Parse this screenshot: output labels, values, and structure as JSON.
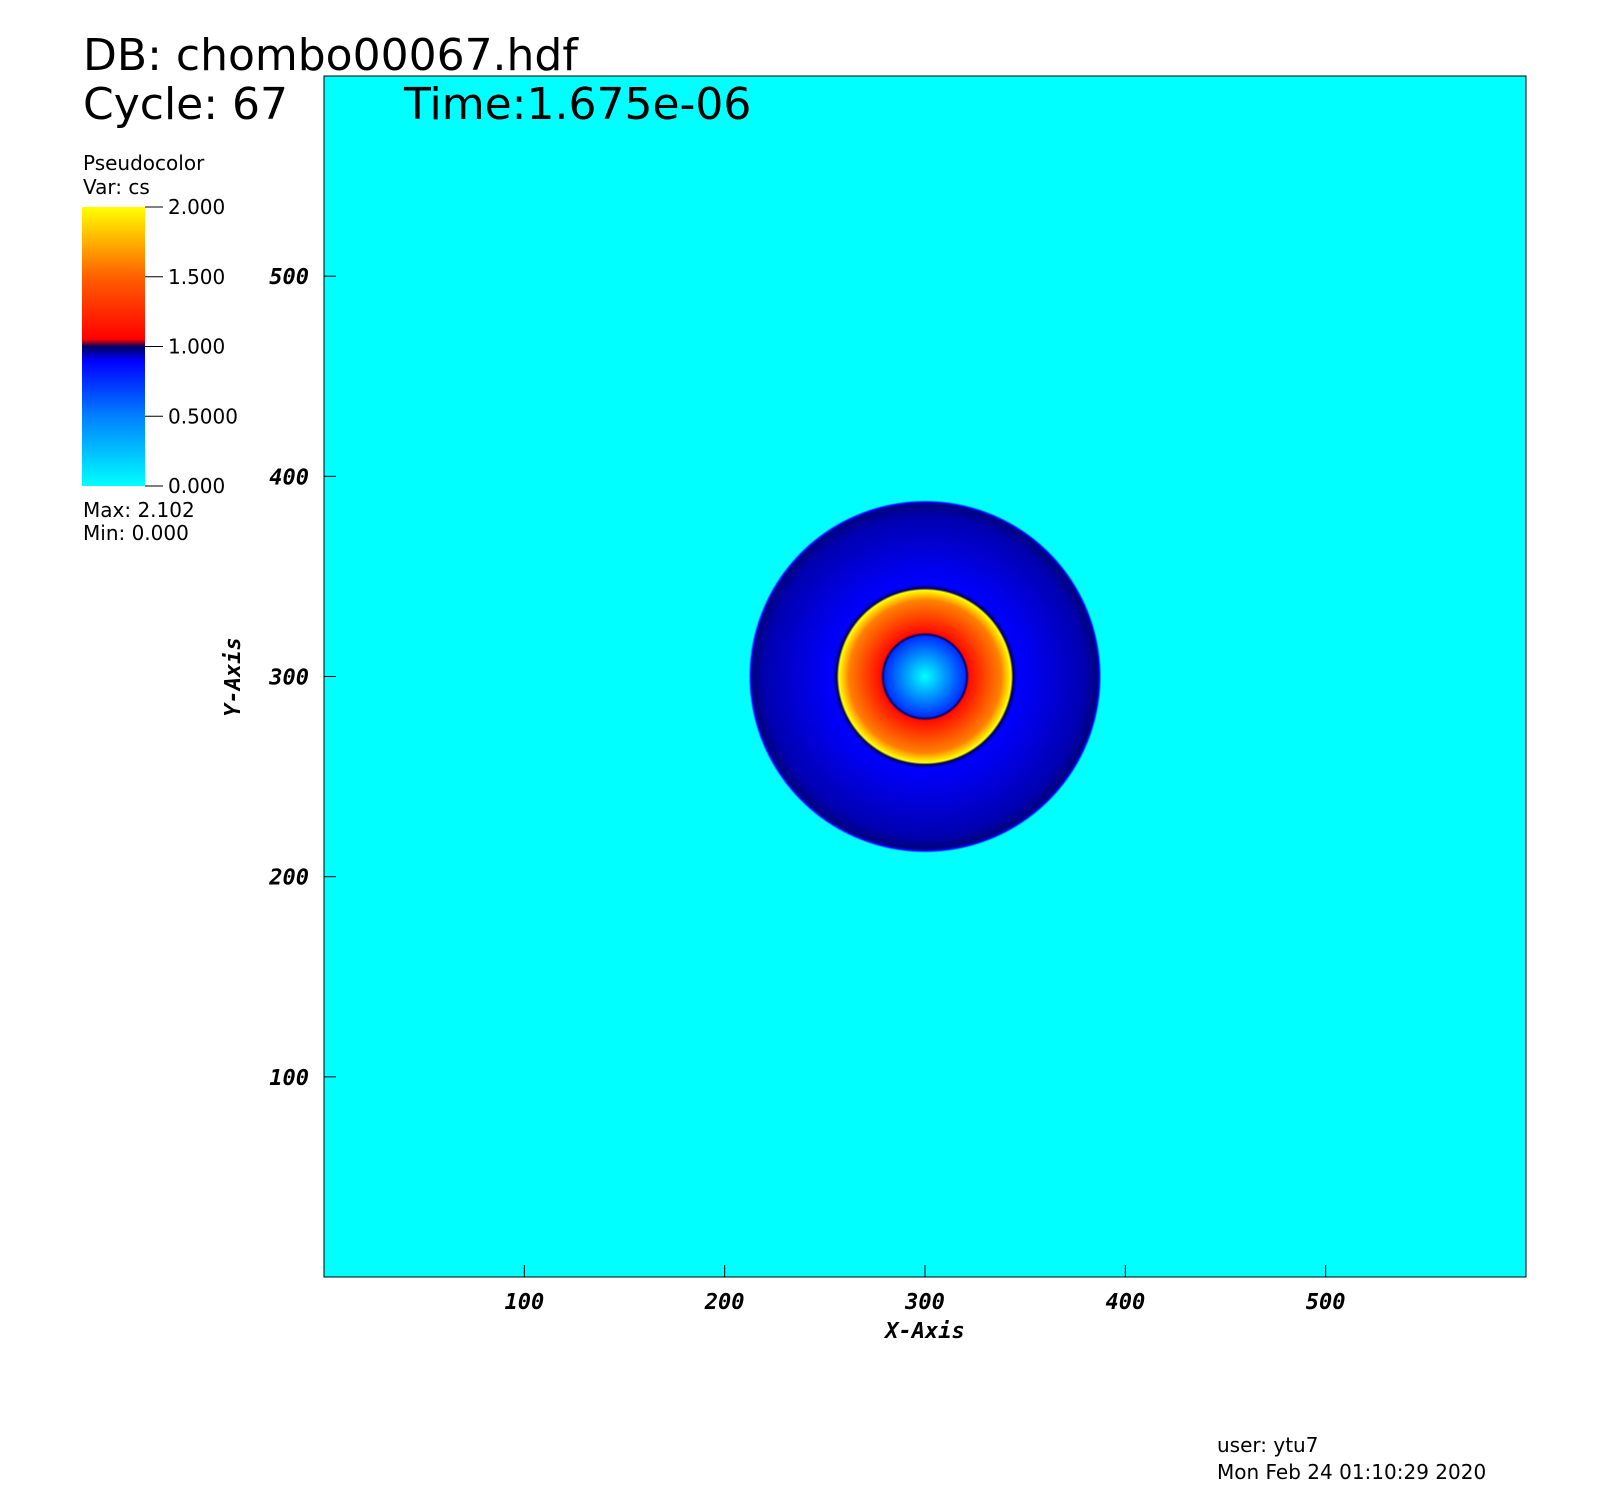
{
  "chart_data": {
    "type": "radial-field",
    "db_label": "DB: chombo00067.hdf",
    "cycle_label": "Cycle: 67",
    "time_label": "Time:1.675e-06",
    "legend_title": "Pseudocolor",
    "legend_var": "Var: cs",
    "legend_max": "Max:  2.102",
    "legend_min": "Min:  0.000",
    "xlabel": "X-Axis",
    "ylabel": "Y-Axis",
    "user_label": "user: ytu7",
    "date_label": "Mon Feb 24 01:10:29 2020",
    "xlim": [
      0,
      600
    ],
    "ylim": [
      0,
      600
    ],
    "xticks": [
      100,
      200,
      300,
      400,
      500
    ],
    "yticks": [
      100,
      200,
      300,
      400,
      500
    ],
    "center": [
      300,
      300
    ],
    "radius": [
      0,
      20,
      21,
      22,
      38,
      43,
      44,
      46,
      80,
      86,
      87,
      88,
      300
    ],
    "values": [
      0.0,
      0.75,
      1.0,
      1.1,
      1.6,
      2.0,
      1.0,
      0.9,
      0.95,
      0.98,
      0.9,
      0.0,
      0.0
    ],
    "colorbar_lim": [
      0,
      2
    ],
    "colorbar_ticks": [
      {
        "value": 0,
        "label": "0.000"
      },
      {
        "value": 0.5,
        "label": "0.5000"
      },
      {
        "value": 1,
        "label": "1.000"
      },
      {
        "value": 1.5,
        "label": "1.500"
      },
      {
        "value": 2,
        "label": "2.000"
      }
    ],
    "colormap": [
      {
        "value": 0,
        "color": "#00ffff"
      },
      {
        "value": 0.5,
        "color": "#0080ff"
      },
      {
        "value": 0.9,
        "color": "#0000ff"
      },
      {
        "value": 1.0,
        "color": "#000060"
      },
      {
        "value": 1.05,
        "color": "#ff0000"
      },
      {
        "value": 1.5,
        "color": "#ff6000"
      },
      {
        "value": 2.0,
        "color": "#ffff00"
      }
    ]
  }
}
